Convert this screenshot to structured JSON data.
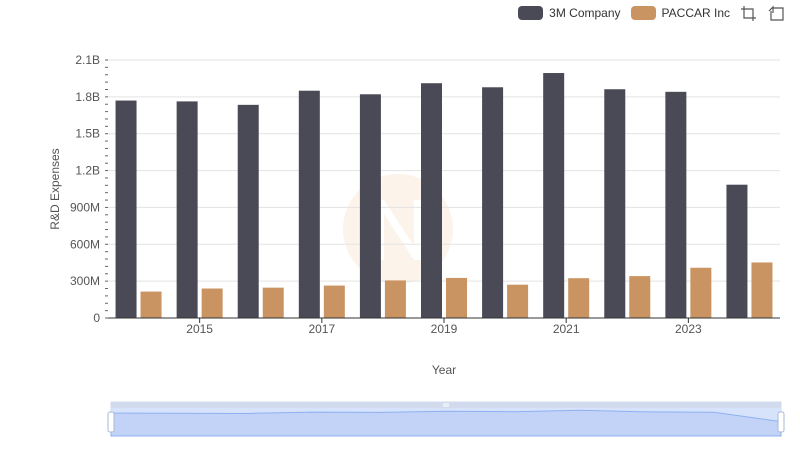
{
  "legend": {
    "items": [
      {
        "label": "3M Company",
        "color": "#4a4a56"
      },
      {
        "label": "PACCAR Inc",
        "color": "#c99461"
      }
    ]
  },
  "toolbar": {
    "icons": [
      "zoom-icon",
      "restore-icon"
    ]
  },
  "chart_data": {
    "type": "bar",
    "title": "",
    "xlabel": "Year",
    "ylabel": "R&D Expenses",
    "categories": [
      "2014",
      "2015",
      "2016",
      "2017",
      "2018",
      "2019",
      "2020",
      "2021",
      "2022",
      "2023",
      "2024"
    ],
    "x_tick_labels": [
      "2015",
      "2017",
      "2019",
      "2021",
      "2023"
    ],
    "y_ticks": [
      0,
      300000000,
      600000000,
      900000000,
      1200000000,
      1500000000,
      1800000000,
      2100000000
    ],
    "y_tick_labels": [
      "0",
      "300M",
      "600M",
      "900M",
      "1.2B",
      "1.5B",
      "1.8B",
      "2.1B"
    ],
    "ylim": [
      0,
      2100000000
    ],
    "series": [
      {
        "name": "3M Company",
        "color": "#4a4a56",
        "values": [
          1770000000,
          1763000000,
          1735000000,
          1850000000,
          1821000000,
          1911000000,
          1878000000,
          1994000000,
          1862000000,
          1841000000,
          1085000000
        ]
      },
      {
        "name": "PACCAR Inc",
        "color": "#c99461",
        "values": [
          215000000,
          240000000,
          247000000,
          264000000,
          306000000,
          326000000,
          271000000,
          324000000,
          341000000,
          409000000,
          452000000
        ]
      }
    ],
    "grid": true,
    "legend_position": "top-right"
  }
}
